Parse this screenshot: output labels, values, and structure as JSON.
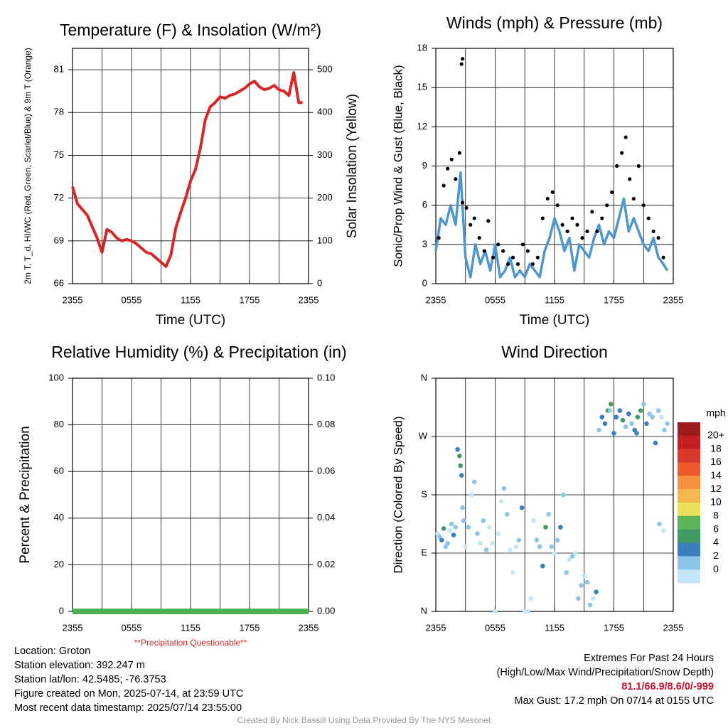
{
  "chart_data": [
    {
      "type": "line",
      "title": "Temperature (F) & Insolation (W/m²)",
      "xlabel": "Time (UTC)",
      "ylabel": "2m T, T_d, HI/WC (Red, Green, Scarlet/Blue) & 9m T (Orange)",
      "ylabel_right": "Solar Insolation (Yellow)",
      "x_ticks": [
        "2355",
        "0555",
        "1155",
        "1755",
        "2355"
      ],
      "ylim": [
        66,
        82.5
      ],
      "y_ticks": [
        66,
        69,
        72,
        75,
        78,
        81
      ],
      "y2lim": [
        0,
        550
      ],
      "y2_ticks": [
        0,
        100,
        200,
        300,
        400,
        500
      ],
      "grid": true,
      "series": [
        {
          "color": "#d62728",
          "x": [
            0,
            0.5,
            1,
            1.5,
            2,
            2.5,
            3,
            3.5,
            4,
            4.5,
            5,
            5.5,
            6,
            6.5,
            7,
            7.5,
            8,
            8.5,
            9,
            9.5,
            10,
            10.5,
            11,
            11.5,
            12,
            12.5,
            13,
            13.5,
            14,
            14.5,
            15,
            15.5,
            16,
            16.5,
            17,
            17.5,
            18,
            18.5,
            19,
            19.5,
            20,
            20.5,
            21,
            21.5,
            22,
            22.5,
            23,
            23.4
          ],
          "values": [
            72.8,
            71.6,
            71.2,
            70.8,
            70.0,
            69.2,
            68.2,
            69.8,
            69.6,
            69.2,
            69.0,
            69.1,
            69.0,
            68.8,
            68.5,
            68.2,
            68.1,
            67.8,
            67.5,
            67.2,
            68.0,
            69.9,
            71.0,
            72.0,
            73.2,
            74.0,
            75.5,
            77.5,
            78.4,
            78.7,
            79.1,
            79.0,
            79.2,
            79.3,
            79.5,
            79.7,
            80.0,
            80.2,
            79.8,
            79.6,
            79.7,
            79.9,
            79.6,
            79.5,
            79.2,
            80.8,
            78.7,
            78.7
          ]
        },
        {
          "color": "#f0e24a",
          "values": []
        }
      ]
    },
    {
      "type": "scatter",
      "title": "Winds (mph) & Pressure (mb)",
      "xlabel": "Time (UTC)",
      "ylabel": "Sonic/Prop Wind & Gust (Blue, Black)",
      "x_ticks": [
        "2355",
        "0555",
        "1155",
        "1755",
        "2355"
      ],
      "ylim": [
        0,
        18
      ],
      "y_ticks": [
        0,
        3,
        6,
        9,
        12,
        15,
        18
      ],
      "grid": true,
      "series": [
        {
          "color": "#4f96cf",
          "x": [
            0,
            0.5,
            1,
            1.5,
            2,
            2.5,
            3,
            3.5,
            4,
            4.5,
            5,
            5.5,
            6,
            6.5,
            7,
            7.5,
            8,
            8.5,
            9,
            9.5,
            10,
            10.5,
            11,
            11.5,
            12,
            12.5,
            13,
            13.5,
            14,
            14.5,
            15,
            15.5,
            16,
            16.5,
            17,
            17.5,
            18,
            18.5,
            19,
            19.5,
            20,
            20.5,
            21,
            21.5,
            22,
            22.5,
            23,
            23.4
          ],
          "values": [
            2.5,
            5.0,
            4.5,
            6.0,
            4.5,
            8.5,
            2.0,
            0.5,
            3.0,
            1.5,
            2.5,
            1.0,
            3.0,
            0.5,
            1.0,
            2.0,
            0.5,
            1.0,
            0.5,
            1.5,
            1.0,
            0.5,
            2.5,
            3.5,
            5.0,
            4.0,
            2.5,
            3.5,
            1.0,
            3.0,
            2.5,
            2.0,
            3.5,
            4.5,
            3.0,
            4.0,
            3.5,
            5.0,
            6.5,
            4.0,
            5.0,
            4.0,
            3.0,
            2.5,
            3.5,
            2.0,
            1.5,
            1.0
          ]
        },
        {
          "color": "#000000",
          "x": [
            0.3,
            0.8,
            1.2,
            1.6,
            2.0,
            2.4,
            2.7,
            3.1,
            3.5,
            3.9,
            4.4,
            4.9,
            5.3,
            5.8,
            6.3,
            6.8,
            7.3,
            7.8,
            8.3,
            8.8,
            9.3,
            9.8,
            10.3,
            10.8,
            11.3,
            11.8,
            12.3,
            12.8,
            13.3,
            13.8,
            14.3,
            14.8,
            15.3,
            15.8,
            16.3,
            16.8,
            17.3,
            17.8,
            18.3,
            18.8,
            19.2,
            19.6,
            20.0,
            20.5,
            21.0,
            21.5,
            22.0,
            22.5,
            23.0,
            2.6,
            2.7
          ],
          "values": [
            3.5,
            7.5,
            8.8,
            9.5,
            8.0,
            10.0,
            6.2,
            5.8,
            4.5,
            5.0,
            3.5,
            2.5,
            4.8,
            2.0,
            3.0,
            2.5,
            1.5,
            2.0,
            1.5,
            3.0,
            2.5,
            1.5,
            2.0,
            5.0,
            6.5,
            7.0,
            6.0,
            4.5,
            4.0,
            5.0,
            4.5,
            3.5,
            4.0,
            5.5,
            4.0,
            5.0,
            6.0,
            7.0,
            9.0,
            10.0,
            11.2,
            8.0,
            6.5,
            9.0,
            6.0,
            5.0,
            4.0,
            3.5,
            2.0,
            16.8,
            17.2
          ]
        }
      ]
    },
    {
      "type": "line",
      "title": "Relative Humidity (%) & Precipitation (in)",
      "xlabel": "",
      "ylabel": "Percent & Precipitation",
      "x_ticks": [
        "2355",
        "0555",
        "1155",
        "1755",
        "2355"
      ],
      "ylim": [
        0,
        100
      ],
      "y_ticks": [
        0,
        20,
        40,
        60,
        80,
        100
      ],
      "y2lim": [
        0,
        0.1
      ],
      "y2_ticks": [
        "0.00",
        "0.02",
        "0.04",
        "0.06",
        "0.08",
        "0.10"
      ],
      "grid": true,
      "annotation": "**Precipitation Questionable**",
      "series": [
        {
          "color": "#4caf50",
          "x": [
            0,
            24
          ],
          "values": [
            0,
            0
          ]
        }
      ]
    },
    {
      "type": "scatter",
      "title": "Wind Direction",
      "xlabel": "",
      "ylabel": "Direction (Colored By Speed)",
      "x_ticks": [
        "2355",
        "0555",
        "1155",
        "1755",
        "2355"
      ],
      "ylim": [
        0,
        360
      ],
      "y_ticks": [
        "N",
        "E",
        "S",
        "W",
        "N"
      ],
      "grid": true,
      "legend": {
        "title": "mph",
        "labels": [
          "20+",
          "18",
          "16",
          "14",
          "12",
          "10",
          "8",
          "6",
          "4",
          "2",
          "0"
        ],
        "colors": [
          "#9e1b1b",
          "#c41e24",
          "#d9392b",
          "#ee5a2b",
          "#f8913f",
          "#f5b84d",
          "#e8df5a",
          "#5bb65a",
          "#3f9a63",
          "#3c7fbd",
          "#8dc5e9",
          "#c5e6f8"
        ]
      },
      "series": [
        {
          "x": [
            0.2,
            0.4,
            0.6,
            0.8,
            1.0,
            1.2,
            1.4,
            1.6,
            1.8,
            2.0,
            2.2,
            2.4,
            2.5,
            2.6,
            2.7,
            2.8,
            3.0,
            3.3,
            3.6,
            3.9,
            4.2,
            4.5,
            4.8,
            5.1,
            5.4,
            5.7,
            6.0,
            6.3,
            6.6,
            6.9,
            7.2,
            7.5,
            7.8,
            8.1,
            8.4,
            8.7,
            9.0,
            9.3,
            9.6,
            9.9,
            10.2,
            10.5,
            10.8,
            11.1,
            11.4,
            11.7,
            12.0,
            12.3,
            12.6,
            12.9,
            13.2,
            13.5,
            13.8,
            14.1,
            14.4,
            14.7,
            15.0,
            15.3,
            15.6,
            15.9,
            16.2,
            16.5,
            16.8,
            17.1,
            17.4,
            17.7,
            18.0,
            18.3,
            18.6,
            18.9,
            19.2,
            19.5,
            19.8,
            20.1,
            20.4,
            20.7,
            21.0,
            21.3,
            21.6,
            21.9,
            22.2,
            22.5,
            22.8,
            23.1,
            23.4,
            23.0,
            22.6,
            18.2,
            17.6,
            20.3
          ],
          "values": [
            120,
            115,
            110,
            128,
            100,
            105,
            125,
            135,
            118,
            130,
            250,
            240,
            225,
            210,
            160,
            140,
            100,
            130,
            180,
            200,
            120,
            105,
            140,
            95,
            130,
            105,
            0,
            120,
            170,
            190,
            150,
            95,
            60,
            100,
            110,
            160,
            0,
            0,
            20,
            140,
            110,
            100,
            70,
            130,
            150,
            100,
            90,
            110,
            130,
            180,
            60,
            80,
            85,
            90,
            20,
            40,
            55,
            45,
            10,
            20,
            30,
            280,
            300,
            290,
            310,
            320,
            275,
            300,
            310,
            295,
            285,
            305,
            290,
            280,
            300,
            310,
            320,
            290,
            305,
            300,
            260,
            310,
            300,
            280,
            290,
            125,
            135,
            300,
            310,
            275
          ],
          "speed": [
            1,
            2,
            4,
            6,
            3,
            2,
            1,
            3,
            5,
            2,
            4,
            6,
            7,
            4,
            3,
            2,
            1,
            2,
            1,
            2,
            3,
            1,
            2,
            2,
            1,
            1,
            0,
            1,
            1,
            2,
            3,
            1,
            1,
            1,
            2,
            4,
            0,
            0,
            1,
            1,
            2,
            3,
            5,
            6,
            2,
            3,
            1,
            2,
            4,
            2,
            3,
            1,
            2,
            1,
            3,
            2,
            1,
            2,
            2,
            1,
            4,
            3,
            4,
            5,
            6,
            7,
            4,
            3,
            5,
            6,
            2,
            4,
            3,
            5,
            7,
            6,
            3,
            4,
            2,
            3,
            4,
            2,
            1,
            2,
            3,
            1,
            2,
            4,
            3,
            5
          ]
        }
      ]
    }
  ],
  "info_left": {
    "location": "Location: Groton",
    "elevation": "Station elevation: 392.247 m",
    "latlon": "Station lat/lon: 42.5485; -76.3753",
    "created": "Figure created on Mon, 2025-07-14, at 23:59 UTC",
    "recent": "Most recent data timestamp: 2025/07/14 23:55:00"
  },
  "info_right": {
    "heading": "Extremes For Past 24 Hours",
    "subheading": "(High/Low/Max Wind/Precipitation/Snow Depth)",
    "values": "81.1/66.9/8.6/0/-999",
    "gust": "Max Gust: 17.2 mph On 07/14 at 0155 UTC"
  },
  "credit": "Created By Nick Bassill Using Data Provided By The NYS Mesonet"
}
